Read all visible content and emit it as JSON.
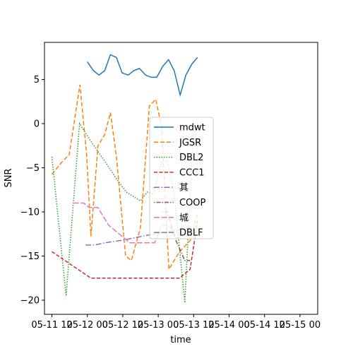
{
  "chart_data": {
    "type": "line",
    "title": "",
    "xlabel": "time",
    "ylabel": "SNR",
    "x_ticks": [
      {
        "x": 0,
        "label": "05-11 12"
      },
      {
        "x": 1,
        "label": "05-12 00"
      },
      {
        "x": 2,
        "label": "05-12 12"
      },
      {
        "x": 3,
        "label": "05-13 00"
      },
      {
        "x": 4,
        "label": "05-13 12"
      },
      {
        "x": 5,
        "label": "05-14 00"
      },
      {
        "x": 6,
        "label": "05-14 12"
      },
      {
        "x": 7,
        "label": "05-15 00"
      }
    ],
    "xlim": [
      -0.21,
      7.5
    ],
    "ylim": [
      -21.6,
      9.2
    ],
    "y_ticks": [
      5,
      0,
      -5,
      -10,
      -15,
      -20
    ],
    "grid": false,
    "legend_position": "center",
    "series": [
      {
        "name": "mdwt",
        "color": "#1f77b4",
        "dash": "solid",
        "points": [
          [
            1.0,
            7.0
          ],
          [
            1.17,
            6.0
          ],
          [
            1.33,
            5.5
          ],
          [
            1.49,
            6.0
          ],
          [
            1.65,
            7.8
          ],
          [
            1.82,
            7.5
          ],
          [
            1.98,
            5.75
          ],
          [
            2.15,
            5.5
          ],
          [
            2.31,
            6.0
          ],
          [
            2.47,
            6.25
          ],
          [
            2.64,
            5.5
          ],
          [
            2.8,
            5.25
          ],
          [
            2.96,
            5.25
          ],
          [
            3.13,
            6.5
          ],
          [
            3.29,
            7.25
          ],
          [
            3.45,
            6.0
          ],
          [
            3.62,
            3.25
          ],
          [
            3.78,
            5.5
          ],
          [
            3.95,
            6.75
          ],
          [
            4.11,
            7.5
          ]
        ]
      },
      {
        "name": "JGSR",
        "color": "#ff7f0e",
        "dash": "6,3",
        "points": [
          [
            0.0,
            -5.75
          ],
          [
            0.25,
            -4.5
          ],
          [
            0.49,
            -3.5
          ],
          [
            0.79,
            4.4
          ],
          [
            0.98,
            -3.5
          ],
          [
            1.1,
            -12.75
          ],
          [
            1.3,
            -2.5
          ],
          [
            1.49,
            -1.25
          ],
          [
            1.65,
            1.25
          ],
          [
            1.82,
            -3.75
          ],
          [
            2.08,
            -15.0
          ],
          [
            2.24,
            -15.5
          ],
          [
            2.5,
            -11.75
          ],
          [
            2.75,
            2.0
          ],
          [
            2.93,
            2.75
          ],
          [
            3.09,
            -0.25
          ],
          [
            3.3,
            -16.5
          ],
          [
            3.6,
            -14.5
          ],
          [
            3.9,
            -13.25
          ],
          [
            4.11,
            -10.25
          ]
        ]
      },
      {
        "name": "DBL2",
        "color": "#2ca02c",
        "dash": "1.5,2",
        "points": [
          [
            0.0,
            -3.75
          ],
          [
            0.4,
            -19.5
          ],
          [
            0.78,
            0.0
          ],
          [
            1.1,
            -2.0
          ],
          [
            1.49,
            -4.25
          ],
          [
            1.82,
            -6.25
          ],
          [
            2.1,
            -7.75
          ],
          [
            2.5,
            -8.75
          ],
          [
            2.69,
            -7.75
          ],
          [
            2.86,
            -8.0
          ],
          [
            3.1,
            -4.25
          ],
          [
            3.25,
            -4.25
          ],
          [
            3.45,
            -8.0
          ],
          [
            3.75,
            -20.3
          ],
          [
            4.0,
            0.25
          ],
          [
            4.11,
            -3.75
          ]
        ]
      },
      {
        "name": "CCC1",
        "color": "#d62728",
        "dash": "5,2.5",
        "points": [
          [
            0.0,
            -14.5
          ],
          [
            0.55,
            -16.0
          ],
          [
            1.1,
            -17.5
          ],
          [
            1.6,
            -17.5
          ],
          [
            2.2,
            -17.5
          ],
          [
            2.7,
            -17.5
          ],
          [
            3.2,
            -17.5
          ],
          [
            3.6,
            -17.5
          ],
          [
            3.9,
            -16.5
          ],
          [
            4.11,
            -11.0
          ]
        ]
      },
      {
        "name": "其",
        "color": "#9467bd",
        "dash": "8,2.5,1.5,2.5",
        "points": [
          [
            0.95,
            -13.75
          ],
          [
            1.2,
            -13.75
          ],
          [
            1.49,
            -13.5
          ],
          [
            2.0,
            -13.2
          ],
          [
            2.5,
            -12.8
          ],
          [
            3.0,
            -12.4
          ],
          [
            3.5,
            -12.1
          ],
          [
            3.9,
            -11.8
          ],
          [
            4.11,
            -12.0
          ]
        ]
      },
      {
        "name": "COOP",
        "color": "#8c564b",
        "dash": "1.5,2,6,2",
        "points": [
          [
            3.1,
            -10.0
          ],
          [
            3.25,
            -10.0
          ],
          [
            3.5,
            -13.25
          ],
          [
            3.75,
            -15.5
          ],
          [
            3.9,
            -15.5
          ]
        ]
      },
      {
        "name": "城",
        "color": "#e377c2",
        "dash": "8,2.5",
        "points": [
          [
            0.6,
            -9.0
          ],
          [
            0.9,
            -9.0
          ],
          [
            1.05,
            -9.5
          ],
          [
            1.3,
            -9.5
          ],
          [
            1.6,
            -11.5
          ],
          [
            1.9,
            -12.5
          ],
          [
            2.2,
            -13.5
          ],
          [
            2.6,
            -13.5
          ],
          [
            2.9,
            -13.5
          ],
          [
            3.1,
            -11.5
          ],
          [
            3.25,
            -11.5
          ],
          [
            3.4,
            -12.0
          ]
        ]
      },
      {
        "name": "DBLF",
        "color": "#7f7f7f",
        "dash": "8,2.5",
        "points": []
      }
    ]
  }
}
